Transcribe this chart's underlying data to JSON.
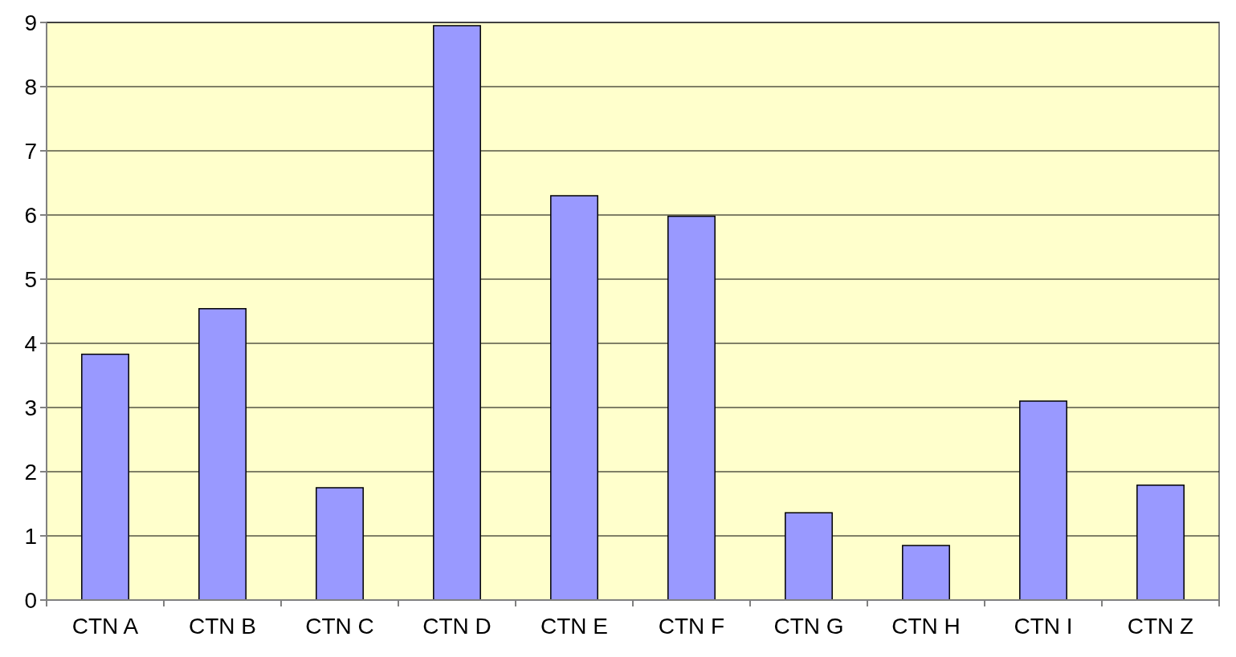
{
  "chart_data": {
    "type": "bar",
    "categories": [
      "CTN A",
      "CTN B",
      "CTN C",
      "CTN D",
      "CTN E",
      "CTN F",
      "CTN G",
      "CTN H",
      "CTN I",
      "CTN Z"
    ],
    "values": [
      3.83,
      4.54,
      1.75,
      8.95,
      6.3,
      5.98,
      1.36,
      0.85,
      3.1,
      1.79
    ],
    "color": "#9999ff",
    "ylim": [
      0,
      9
    ],
    "yticks": [
      0,
      1,
      2,
      3,
      4,
      5,
      6,
      7,
      8,
      9
    ],
    "grid": "y"
  }
}
